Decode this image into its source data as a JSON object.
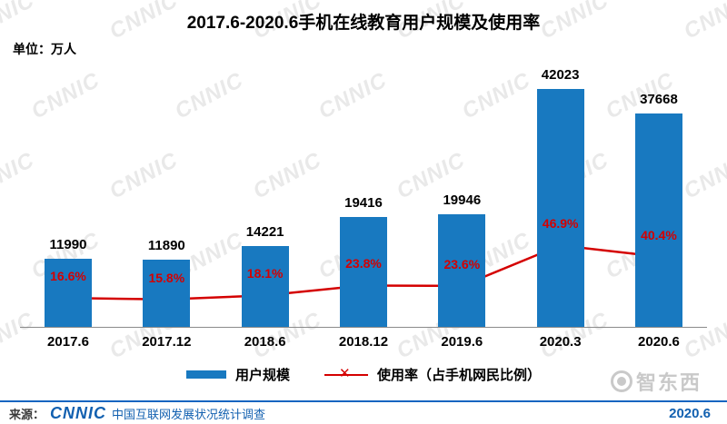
{
  "title": "2017.6-2020.6手机在线教育用户规模及使用率",
  "unit_label": "单位：万人",
  "watermark": {
    "text": "CNNIC",
    "badge": "智东西"
  },
  "chart_data": {
    "type": "bar+line",
    "title": "2017.6-2020.6手机在线教育用户规模及使用率",
    "categories": [
      "2017.6",
      "2017.12",
      "2018.6",
      "2018.12",
      "2019.6",
      "2020.3",
      "2020.6"
    ],
    "series": [
      {
        "name": "用户规模",
        "type": "bar",
        "unit": "万人",
        "color": "#1879C0",
        "values": [
          11990,
          11890,
          14221,
          19416,
          19946,
          42023,
          37668
        ]
      },
      {
        "name": "使用率（占手机网民比例）",
        "type": "line",
        "unit": "%",
        "color": "#D40000",
        "values": [
          16.6,
          15.8,
          18.1,
          23.8,
          23.6,
          46.9,
          40.4
        ],
        "labels": [
          "16.6%",
          "15.8%",
          "18.1%",
          "23.8%",
          "23.6%",
          "46.9%",
          "40.4%"
        ]
      }
    ],
    "ylim": [
      0,
      43000
    ],
    "y2lim": [
      0,
      140
    ],
    "grid": false,
    "legend_position": "bottom"
  },
  "legend": {
    "bar_label": "用户规模",
    "line_label": "使用率（占手机网民比例）"
  },
  "footer": {
    "source_prefix": "来源：",
    "logo": "CNNIC",
    "source_text": "中国互联网发展状况统计调查",
    "date": "2020.6"
  }
}
